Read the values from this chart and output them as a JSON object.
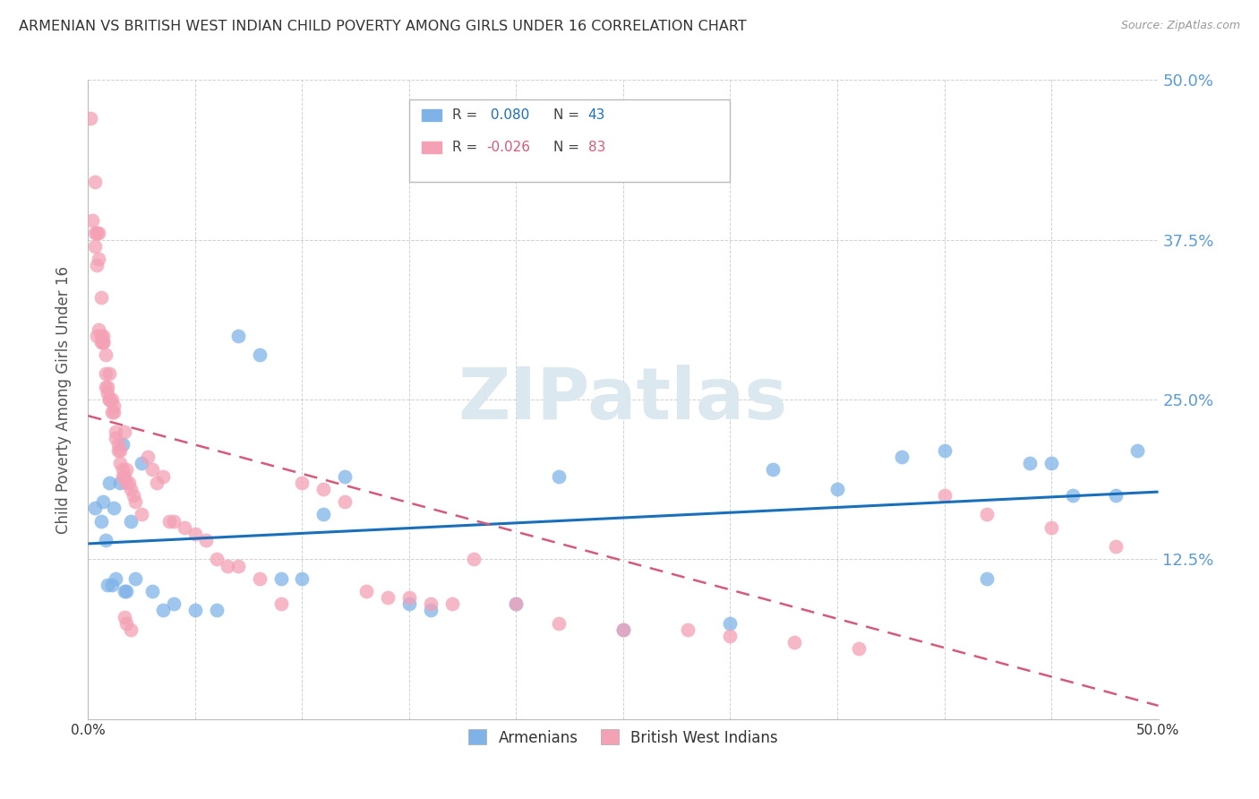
{
  "title": "ARMENIAN VS BRITISH WEST INDIAN CHILD POVERTY AMONG GIRLS UNDER 16 CORRELATION CHART",
  "source": "Source: ZipAtlas.com",
  "ylabel": "Child Poverty Among Girls Under 16",
  "xlim": [
    0.0,
    0.5
  ],
  "ylim": [
    0.0,
    0.5
  ],
  "armenian_R": 0.08,
  "armenian_N": 43,
  "bwi_R": -0.026,
  "bwi_N": 83,
  "armenian_color": "#7fb3e8",
  "armenian_line_color": "#1a6fba",
  "bwi_color": "#f4a0b5",
  "bwi_line_color": "#d45a7a",
  "background_color": "#ffffff",
  "watermark_text": "ZIPatlas",
  "watermark_color": "#dce8f0",
  "title_fontsize": 11.5,
  "source_fontsize": 9,
  "label_color": "#5b9bd5",
  "armenians_x": [
    0.003,
    0.006,
    0.007,
    0.008,
    0.009,
    0.01,
    0.011,
    0.012,
    0.013,
    0.015,
    0.016,
    0.017,
    0.018,
    0.02,
    0.022,
    0.025,
    0.03,
    0.035,
    0.04,
    0.05,
    0.06,
    0.07,
    0.08,
    0.09,
    0.1,
    0.11,
    0.12,
    0.15,
    0.16,
    0.2,
    0.22,
    0.25,
    0.3,
    0.32,
    0.35,
    0.38,
    0.4,
    0.42,
    0.44,
    0.45,
    0.46,
    0.48,
    0.49
  ],
  "armenians_y": [
    0.165,
    0.155,
    0.17,
    0.14,
    0.105,
    0.185,
    0.105,
    0.165,
    0.11,
    0.185,
    0.215,
    0.1,
    0.1,
    0.155,
    0.11,
    0.2,
    0.1,
    0.085,
    0.09,
    0.085,
    0.085,
    0.3,
    0.285,
    0.11,
    0.11,
    0.16,
    0.19,
    0.09,
    0.085,
    0.09,
    0.19,
    0.07,
    0.075,
    0.195,
    0.18,
    0.205,
    0.21,
    0.11,
    0.2,
    0.2,
    0.175,
    0.175,
    0.21
  ],
  "bwi_x": [
    0.001,
    0.002,
    0.003,
    0.003,
    0.003,
    0.004,
    0.004,
    0.004,
    0.005,
    0.005,
    0.005,
    0.006,
    0.006,
    0.006,
    0.007,
    0.007,
    0.007,
    0.008,
    0.008,
    0.008,
    0.009,
    0.009,
    0.01,
    0.01,
    0.01,
    0.011,
    0.011,
    0.012,
    0.012,
    0.013,
    0.013,
    0.014,
    0.014,
    0.015,
    0.015,
    0.016,
    0.016,
    0.017,
    0.017,
    0.018,
    0.018,
    0.019,
    0.02,
    0.021,
    0.022,
    0.025,
    0.028,
    0.03,
    0.032,
    0.035,
    0.038,
    0.04,
    0.045,
    0.05,
    0.055,
    0.06,
    0.065,
    0.07,
    0.08,
    0.09,
    0.1,
    0.11,
    0.12,
    0.13,
    0.14,
    0.15,
    0.16,
    0.17,
    0.18,
    0.2,
    0.22,
    0.25,
    0.28,
    0.3,
    0.33,
    0.36,
    0.4,
    0.42,
    0.45,
    0.48,
    0.017,
    0.018,
    0.02
  ],
  "bwi_y": [
    0.47,
    0.39,
    0.38,
    0.42,
    0.37,
    0.38,
    0.355,
    0.3,
    0.38,
    0.36,
    0.305,
    0.33,
    0.3,
    0.295,
    0.3,
    0.295,
    0.295,
    0.285,
    0.27,
    0.26,
    0.26,
    0.255,
    0.25,
    0.27,
    0.25,
    0.25,
    0.24,
    0.245,
    0.24,
    0.22,
    0.225,
    0.215,
    0.21,
    0.21,
    0.2,
    0.195,
    0.19,
    0.19,
    0.225,
    0.195,
    0.185,
    0.185,
    0.18,
    0.175,
    0.17,
    0.16,
    0.205,
    0.195,
    0.185,
    0.19,
    0.155,
    0.155,
    0.15,
    0.145,
    0.14,
    0.125,
    0.12,
    0.12,
    0.11,
    0.09,
    0.185,
    0.18,
    0.17,
    0.1,
    0.095,
    0.095,
    0.09,
    0.09,
    0.125,
    0.09,
    0.075,
    0.07,
    0.07,
    0.065,
    0.06,
    0.055,
    0.175,
    0.16,
    0.15,
    0.135,
    0.08,
    0.075,
    0.07
  ]
}
